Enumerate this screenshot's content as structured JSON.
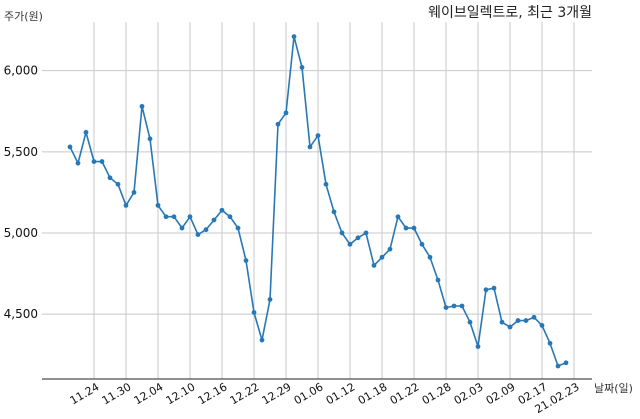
{
  "chart_data": {
    "type": "line",
    "title": "웨이브일렉트로, 최근 3개월",
    "xlabel": "날짜(일)",
    "ylabel": "주가(원)",
    "ylim": [
      4100,
      6300
    ],
    "grid": true,
    "yticks": [
      4500,
      5000,
      5500,
      6000
    ],
    "ytick_labels": [
      "4,500",
      "5,000",
      "5,500",
      "6,000"
    ],
    "x_tick_labels": [
      {
        "label": "11.24",
        "index": 3
      },
      {
        "label": "11.30",
        "index": 7
      },
      {
        "label": "12.04",
        "index": 11
      },
      {
        "label": "12.10",
        "index": 15
      },
      {
        "label": "12.16",
        "index": 19
      },
      {
        "label": "12.22",
        "index": 23
      },
      {
        "label": "12.29",
        "index": 27
      },
      {
        "label": "01.06",
        "index": 31
      },
      {
        "label": "01.12",
        "index": 35
      },
      {
        "label": "01.18",
        "index": 39
      },
      {
        "label": "01.22",
        "index": 43
      },
      {
        "label": "01.28",
        "index": 47
      },
      {
        "label": "02.03",
        "index": 51
      },
      {
        "label": "02.09",
        "index": 55
      },
      {
        "label": "02.17",
        "index": 59
      },
      {
        "label": "21.02.23",
        "index": 63
      }
    ],
    "series": [
      {
        "values": [
          5530,
          5430,
          5620,
          5440,
          5440,
          5340,
          5300,
          5170,
          5250,
          5780,
          5580,
          5170,
          5100,
          5100,
          5030,
          5100,
          4990,
          5020,
          5080,
          5140,
          5100,
          5030,
          4830,
          4510,
          4340,
          4590,
          5670,
          5740,
          6210,
          6020,
          5530,
          5600,
          5300,
          5130,
          5000,
          4930,
          4970,
          5000,
          4800,
          4850,
          4900,
          5100,
          5030,
          5030,
          4930,
          4850,
          4710,
          4540,
          4550,
          4550,
          4450,
          4300,
          4650,
          4660,
          4450,
          4420,
          4460,
          4460,
          4480,
          4430,
          4320,
          4180,
          4200
        ]
      }
    ],
    "colors": {
      "line": "#2878b5",
      "grid": "#c8c8c8"
    }
  }
}
